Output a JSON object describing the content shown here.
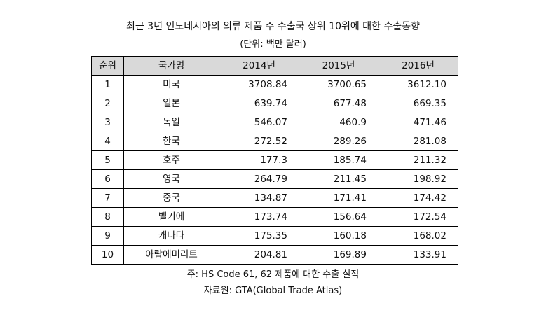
{
  "title": "최근 3년 인도네시아의 의류 제품 주 수출국 상위 10위에 대한 수출동향",
  "unit": "(단위: 백만 달러)",
  "table": {
    "headers": [
      "순위",
      "국가명",
      "2014년",
      "2015년",
      "2016년"
    ],
    "rows": [
      [
        "1",
        "미국",
        "3708.84",
        "3700.65",
        "3612.10"
      ],
      [
        "2",
        "일본",
        "639.74",
        "677.48",
        "669.35"
      ],
      [
        "3",
        "독일",
        "546.07",
        "460.9",
        "471.46"
      ],
      [
        "4",
        "한국",
        "272.52",
        "289.26",
        "281.08"
      ],
      [
        "5",
        "호주",
        "177.3",
        "185.74",
        "211.32"
      ],
      [
        "6",
        "영국",
        "264.79",
        "211.45",
        "198.92"
      ],
      [
        "7",
        "중국",
        "134.87",
        "171.41",
        "174.42"
      ],
      [
        "8",
        "벨기에",
        "173.74",
        "156.64",
        "172.54"
      ],
      [
        "9",
        "캐나다",
        "175.35",
        "160.18",
        "168.02"
      ],
      [
        "10",
        "아랍에미리트",
        "204.81",
        "169.89",
        "133.91"
      ]
    ]
  },
  "note": "주: HS Code 61, 62 제품에 대한 수출 실적",
  "source": "자료원: GTA(Global Trade Atlas)"
}
